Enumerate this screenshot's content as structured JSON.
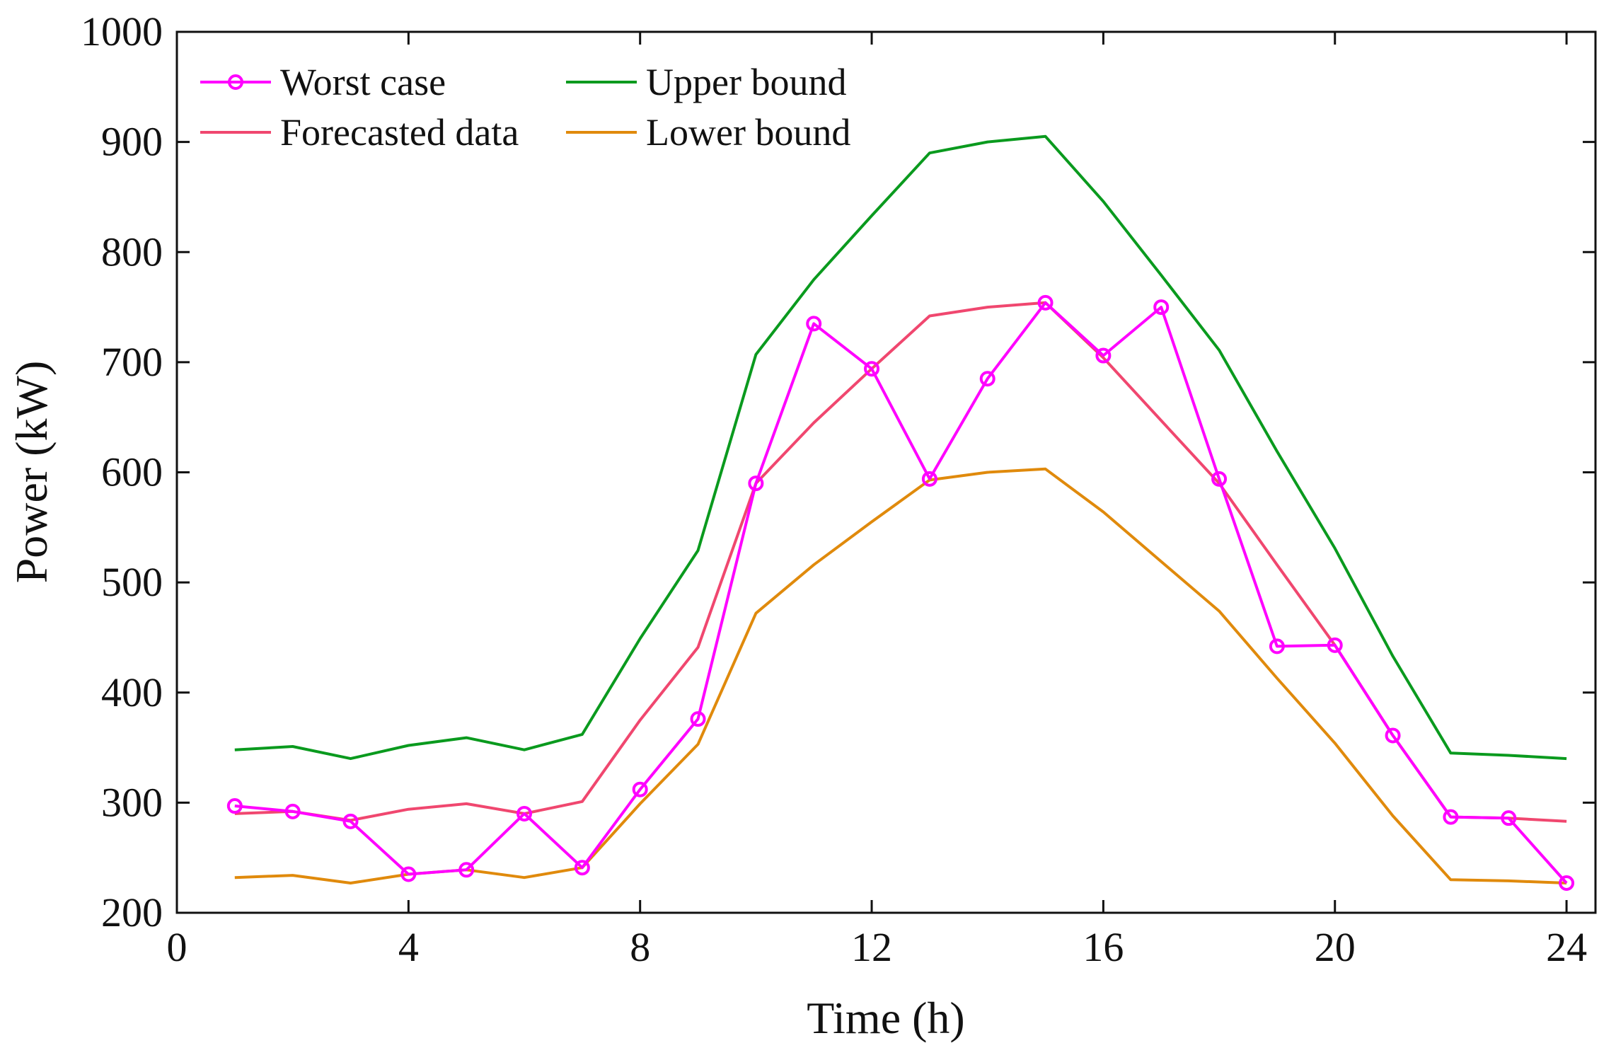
{
  "chart_data": {
    "type": "line",
    "title": "",
    "xlabel": "Time (h)",
    "ylabel": "Power (kW)",
    "xlim": [
      0,
      24.5
    ],
    "ylim": [
      200,
      1000
    ],
    "xticks": [
      0,
      4,
      8,
      12,
      16,
      20,
      24
    ],
    "yticks": [
      200,
      300,
      400,
      500,
      600,
      700,
      800,
      900,
      1000
    ],
    "grid": false,
    "legend_position": "top-left",
    "x": [
      1,
      2,
      3,
      4,
      5,
      6,
      7,
      8,
      9,
      10,
      11,
      12,
      13,
      14,
      15,
      16,
      17,
      18,
      19,
      20,
      21,
      22,
      23,
      24
    ],
    "series": [
      {
        "name": "Worst case",
        "color": "#FF00FF",
        "marker": "circle",
        "values": [
          297,
          292,
          283,
          235,
          239,
          290,
          241,
          312,
          376,
          590,
          735,
          694,
          594,
          685,
          754,
          706,
          750,
          594,
          442,
          443,
          361,
          287,
          286,
          227
        ]
      },
      {
        "name": "Forecasted data",
        "color": "#F0476F",
        "marker": "none",
        "values": [
          290,
          292,
          284,
          294,
          299,
          290,
          301,
          375,
          441,
          590,
          645,
          694,
          742,
          750,
          754,
          704,
          647,
          590,
          516,
          443,
          361,
          287,
          286,
          283
        ]
      },
      {
        "name": "Upper bound",
        "color": "#0A9A1E",
        "marker": "none",
        "values": [
          348,
          351,
          340,
          352,
          359,
          348,
          362,
          449,
          529,
          707,
          775,
          833,
          890,
          900,
          905,
          846,
          779,
          711,
          619,
          531,
          433,
          345,
          343,
          340
        ]
      },
      {
        "name": "Lower bound",
        "color": "#E08A0C",
        "marker": "none",
        "values": [
          232,
          234,
          227,
          235,
          239,
          232,
          241,
          299,
          353,
          472,
          516,
          555,
          593,
          600,
          603,
          564,
          519,
          474,
          413,
          354,
          288,
          230,
          229,
          227
        ]
      }
    ]
  }
}
